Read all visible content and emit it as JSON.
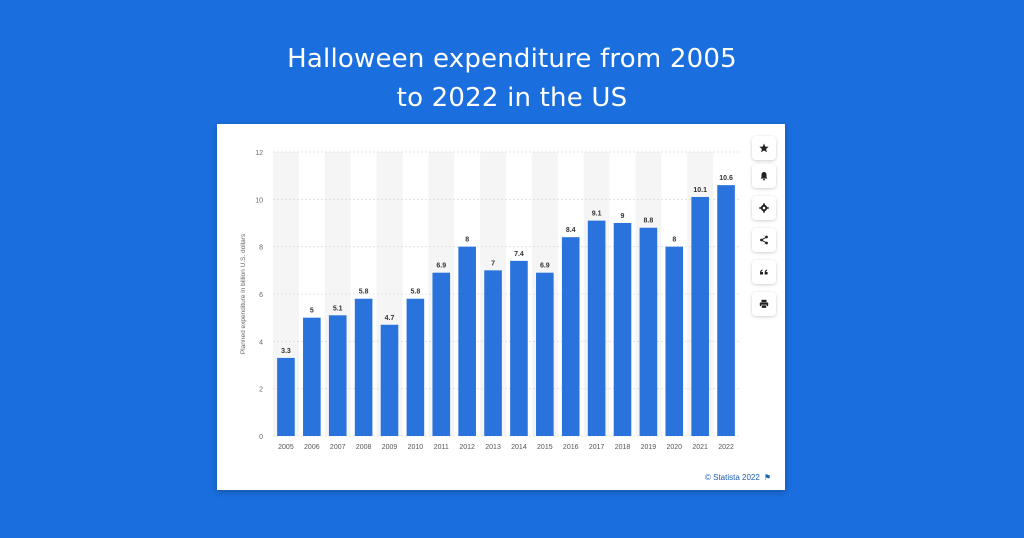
{
  "headline": {
    "line1": "Halloween expenditure from 2005",
    "line2": "to 2022 in the US"
  },
  "colors": {
    "background": "#1a6ede",
    "bar": "#2a73dc",
    "credit": "#1a5fb4"
  },
  "toolbar": [
    {
      "icon": "star-icon",
      "name": "favorite-button"
    },
    {
      "icon": "bell-icon",
      "name": "notification-button"
    },
    {
      "icon": "gear-icon",
      "name": "settings-button"
    },
    {
      "icon": "share-icon",
      "name": "share-button"
    },
    {
      "icon": "quote-icon",
      "name": "cite-button"
    },
    {
      "icon": "print-icon",
      "name": "print-button"
    }
  ],
  "credit": {
    "text": "© Statista 2022",
    "flag_icon": "flag-icon"
  },
  "chart_data": {
    "type": "bar",
    "categories": [
      "2005",
      "2006",
      "2007",
      "2008",
      "2009",
      "2010",
      "2011",
      "2012",
      "2013",
      "2014",
      "2015",
      "2016",
      "2017",
      "2018",
      "2019",
      "2020",
      "2021",
      "2022"
    ],
    "values": [
      3.3,
      5,
      5.1,
      5.8,
      4.7,
      5.8,
      6.9,
      8,
      7,
      7.4,
      6.9,
      8.4,
      9.1,
      9,
      8.8,
      8,
      10.1,
      10.6
    ],
    "data_labels": [
      "3.3",
      "5",
      "5.1",
      "5.8",
      "4.7",
      "5.8",
      "6.9",
      "8",
      "7",
      "7.4",
      "6.9",
      "8.4",
      "9.1",
      "9",
      "8.8",
      "8",
      "10.1",
      "10.6"
    ],
    "ylabel": "Planned expenditure in billion U.S. dollars",
    "xlabel": "",
    "ylim": [
      0,
      12
    ],
    "yticks": [
      "0",
      "2",
      "4",
      "6",
      "8",
      "10",
      "12"
    ],
    "grid": true
  }
}
